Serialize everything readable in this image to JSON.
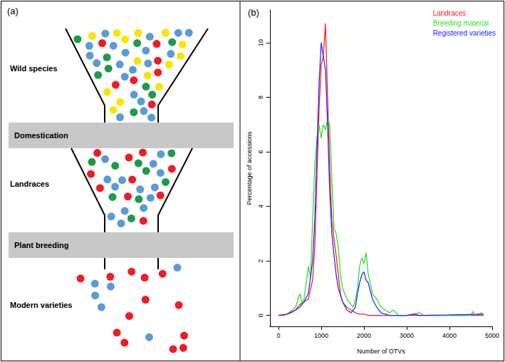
{
  "figure": {
    "panel_a": {
      "label": "(a)",
      "stages": [
        "Wild species",
        "Landraces",
        "Modern varieties"
      ],
      "steps": [
        "Domestication",
        "Plant breeding"
      ]
    }
  },
  "chart_data": {
    "type": "line",
    "title": "(b)",
    "x_label": "Number of OTVs",
    "y_label": "Percentage of accessions",
    "xlim": [
      -200,
      5000
    ],
    "xticks": [
      0,
      1000,
      2000,
      3000,
      4000,
      5000
    ],
    "ylim": [
      -0.4,
      11.2
    ],
    "yticks": [
      0,
      2,
      4,
      6,
      8,
      10
    ],
    "grid": false,
    "legend": "top-right",
    "marker": "none",
    "line_style": "solid",
    "series": [
      {
        "name": "Landraces",
        "color": "#ff2020",
        "x": [
          0,
          100,
          200,
          300,
          400,
          500,
          600,
          700,
          800,
          850,
          900,
          950,
          1000,
          1050,
          1100,
          1150,
          1200,
          1250,
          1300,
          1350,
          1400,
          1450,
          1500,
          1600,
          1700,
          1800,
          1900,
          2000,
          2100,
          2200,
          3000,
          4000,
          4800
        ],
        "values": [
          0,
          0,
          0.05,
          0.1,
          0.2,
          0.4,
          0.5,
          0.6,
          1.3,
          2.5,
          5,
          7.5,
          9.2,
          9.5,
          10.7,
          8,
          5.5,
          3.5,
          2.8,
          2.2,
          1.5,
          0.8,
          0.5,
          0.3,
          0.2,
          0.1,
          0.05,
          0.05,
          0,
          0,
          0,
          0,
          0
        ]
      },
      {
        "name": "Breeding material",
        "color": "#33dd33",
        "x": [
          0,
          200,
          400,
          500,
          550,
          600,
          700,
          750,
          800,
          850,
          900,
          950,
          1000,
          1050,
          1100,
          1150,
          1200,
          1250,
          1300,
          1350,
          1400,
          1450,
          1500,
          1600,
          1700,
          1750,
          1800,
          1850,
          1900,
          1950,
          2000,
          2050,
          2100,
          2150,
          2200,
          2300,
          2400,
          2500,
          2600,
          2700,
          2800,
          3000,
          3300,
          3400,
          4500,
          4550,
          4600,
          4750,
          4800
        ],
        "values": [
          0,
          0.05,
          0.3,
          0.8,
          0.5,
          0.6,
          1.8,
          1.4,
          3.5,
          5.5,
          6.5,
          7,
          6.5,
          7,
          6.8,
          7.2,
          7,
          5,
          3.2,
          3,
          2.5,
          1.5,
          1,
          0.6,
          0.4,
          0.3,
          0.6,
          1,
          1.8,
          2.1,
          1.9,
          2.3,
          1.5,
          1.2,
          0.8,
          0.6,
          0.3,
          0.2,
          0.1,
          0.2,
          0,
          0,
          0.1,
          0,
          0,
          0.15,
          0,
          0.1,
          0
        ]
      },
      {
        "name": "Registered varieties",
        "color": "#2a2aff",
        "x": [
          0,
          200,
          400,
          500,
          600,
          700,
          800,
          850,
          900,
          950,
          1000,
          1050,
          1100,
          1150,
          1200,
          1250,
          1300,
          1350,
          1400,
          1500,
          1600,
          1700,
          1800,
          1850,
          1900,
          1950,
          2000,
          2050,
          2100,
          2200,
          2300,
          2400,
          2500,
          2600,
          3000,
          3200,
          3300,
          4000,
          4800
        ],
        "values": [
          0,
          0.05,
          0.2,
          0.3,
          0.5,
          0.8,
          2,
          3.5,
          6,
          8.5,
          10,
          9.5,
          9,
          7,
          4.5,
          3,
          2.2,
          1.5,
          1,
          0.5,
          0.2,
          0.1,
          0.3,
          0.8,
          1.2,
          1.5,
          1.6,
          1.3,
          1.2,
          0.6,
          0.3,
          0.1,
          0.05,
          0,
          0,
          0.05,
          0,
          0.02,
          0.05
        ]
      }
    ]
  }
}
